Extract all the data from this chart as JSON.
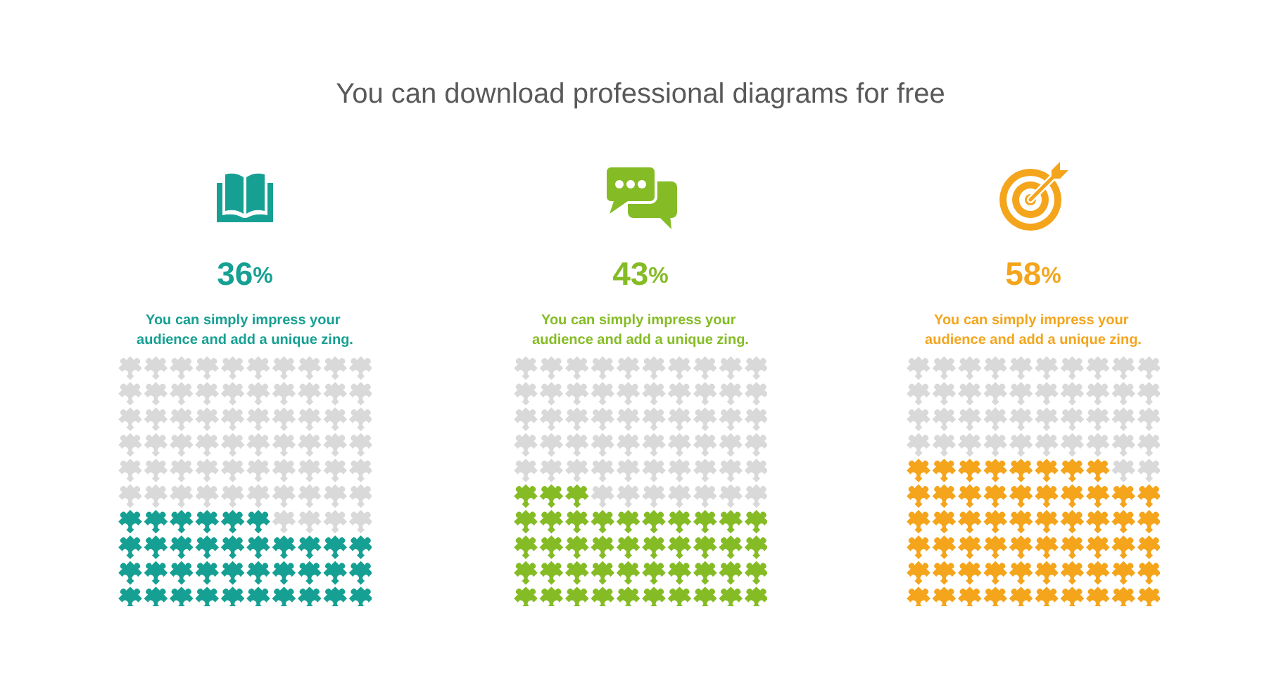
{
  "chart_data": [
    {
      "type": "other",
      "title": "You can download professional diagrams for free"
    },
    {
      "type": "other",
      "values": [
        36
      ],
      "color": "#16a093",
      "value_labels": [
        "36%"
      ],
      "annotations": [
        "You can simply impress your audience and add a unique zing."
      ]
    },
    {
      "type": "other",
      "values": [
        43
      ],
      "color": "#85bc26",
      "value_labels": [
        "43%"
      ],
      "annotations": [
        "You can simply impress your audience and add a unique zing."
      ]
    },
    {
      "type": "other",
      "values": [
        58
      ],
      "color": "#f4a51c",
      "value_labels": [
        "58%"
      ],
      "annotations": [
        "You can simply impress your audience and add a unique zing."
      ]
    }
  ]
}
